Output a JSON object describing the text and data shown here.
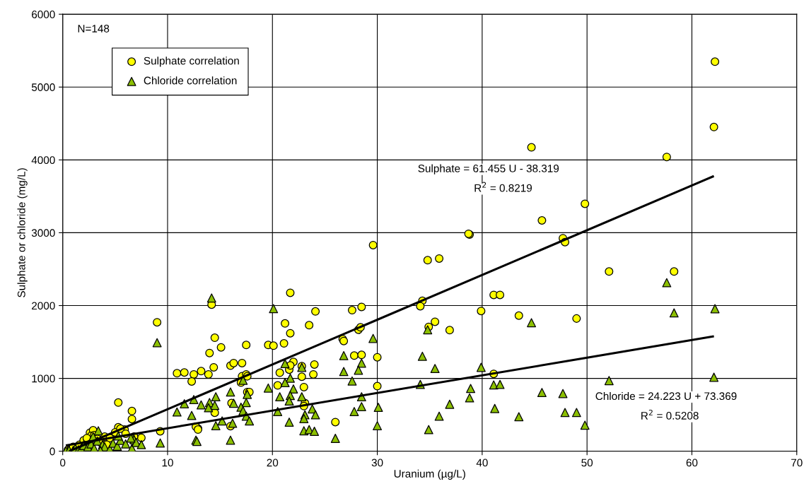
{
  "chart_data": {
    "type": "scatter",
    "xlabel": "Uranium (µg/L)",
    "ylabel": "Sulphate or chloride (mg/L)",
    "xlim": [
      0,
      70
    ],
    "xticks": [
      0,
      10,
      20,
      30,
      40,
      50,
      60,
      70
    ],
    "ylim": [
      0,
      6000
    ],
    "yticks": [
      0,
      1000,
      2000,
      3000,
      4000,
      5000,
      6000
    ],
    "grid": true,
    "legend": "top left",
    "annotations": [
      "N=148",
      "Sulphate = 61.455 U - 38.319",
      "R$^{2}$ = 0.8219",
      "Chloride = 24.223 U + 73.369",
      "R$^{2}$ = 0.5208"
    ],
    "series": [
      {
        "name": "Sulphate correlation",
        "marker": "circle",
        "color": "#ffff00",
        "x": [
          14.2,
          21.7,
          24.1,
          27.6,
          28.5,
          21.2,
          23.5,
          21.7,
          14.5,
          15.1,
          17.5,
          19.6,
          20.1,
          21.1,
          14.0,
          26.7,
          26.8,
          28.2,
          28.4,
          27.8,
          28.5,
          13.2,
          13.9,
          14.4,
          16.0,
          16.3,
          17.1,
          17.1,
          17.5,
          17.6,
          17.0,
          17.6,
          17.8,
          16.1,
          16.0,
          14.5,
          12.9,
          20.7,
          21.6,
          22.0,
          21.7,
          22.8,
          24.0,
          23.9,
          22.8,
          20.5,
          23.0,
          23.1,
          23.0,
          26.0,
          29.6,
          38.8,
          38.7,
          34.8,
          35.9,
          34.3,
          34.1,
          39.9,
          41.1,
          41.7,
          43.5,
          35.5,
          34.9,
          36.9,
          30.0,
          30.0,
          41.1,
          62.2,
          62.1,
          57.6,
          44.7,
          49.8,
          45.7,
          47.7,
          47.9,
          52.1,
          58.3,
          49.0,
          9.0,
          10.9,
          11.6,
          12.5,
          12.3,
          5.3,
          6.6,
          6.6,
          9.3,
          12.7,
          12.9,
          7.5,
          5.3,
          5.9,
          2.6,
          2.9,
          2.7,
          0.5,
          0.8,
          1.0,
          1.6,
          2.0,
          2.3,
          3.0,
          3.3,
          3.6,
          4.0,
          4.5,
          5.0,
          5.5,
          6.0,
          6.8,
          4.2,
          2.6
        ],
        "values": [
          2013,
          2175,
          1920,
          1936,
          1981,
          1755,
          1730,
          1620,
          1558,
          1426,
          1459,
          1459,
          1449,
          1481,
          1349,
          1539,
          1513,
          1668,
          1701,
          1313,
          1323,
          1100,
          1055,
          1152,
          1175,
          1210,
          1210,
          1029,
          1055,
          1029,
          942,
          813,
          813,
          661,
          345,
          529,
          313,
          1078,
          1120,
          1226,
          1177,
          1168,
          1191,
          1055,
          1023,
          903,
          881,
          661,
          620,
          400,
          2830,
          2975,
          2985,
          2623,
          2646,
          2065,
          1991,
          1926,
          2146,
          2146,
          1862,
          1778,
          1707,
          1662,
          1290,
          894,
          1062,
          5349,
          4451,
          4040,
          4172,
          3398,
          3169,
          2925,
          2871,
          2468,
          2468,
          1822,
          1771,
          1071,
          1081,
          1055,
          958,
          668,
          552,
          442,
          274,
          336,
          297,
          184,
          329,
          297,
          255,
          288,
          210,
          20,
          40,
          60,
          90,
          150,
          180,
          220,
          170,
          120,
          200,
          180,
          260,
          310,
          240,
          200,
          90,
          100
        ]
      },
      {
        "name": "Chloride correlation",
        "marker": "triangle",
        "color": "#8cc000",
        "x": [
          14.2,
          20.1,
          29.6,
          26.8,
          28.5,
          28.2,
          26.8,
          27.6,
          21.2,
          22.8,
          21.7,
          21.2,
          22.0,
          19.6,
          17.2,
          16.0,
          17.6,
          14.6,
          20.7,
          21.7,
          22.8,
          21.6,
          28.5,
          13.2,
          14.0,
          14.5,
          13.9,
          16.3,
          17.5,
          17.0,
          17.2,
          17.5,
          17.8,
          15.2,
          16.2,
          14.6,
          16.0,
          20.5,
          23.8,
          23.1,
          24.1,
          23.0,
          21.6,
          23.0,
          23.5,
          24.0,
          26.0,
          27.8,
          28.5,
          30.1,
          30.0,
          34.8,
          44.7,
          34.3,
          35.5,
          39.9,
          34.1,
          38.9,
          38.8,
          36.9,
          35.9,
          34.9,
          41.1,
          41.7,
          41.2,
          43.5,
          45.7,
          57.6,
          62.2,
          58.3,
          62.1,
          52.1,
          47.7,
          47.9,
          49.0,
          49.8,
          9.0,
          10.9,
          11.6,
          12.3,
          12.5,
          9.3,
          12.7,
          12.8,
          3.4,
          6.7,
          0.3,
          0.6,
          1.0,
          1.2,
          1.5,
          1.8,
          2.0,
          2.4,
          2.7,
          3.0,
          3.3,
          3.8,
          4.0,
          4.5,
          4.8,
          5.2,
          5.5,
          6.0,
          6.6,
          6.8,
          7.0,
          7.5,
          3.6,
          2.9,
          5.3,
          6.5
        ],
        "values": [
          2104,
          1958,
          1549,
          1313,
          1210,
          1113,
          1094,
          965,
          1203,
          1152,
          1004,
          942,
          855,
          868,
          975,
          813,
          781,
          748,
          748,
          765,
          748,
          690,
          748,
          636,
          669,
          630,
          597,
          659,
          669,
          604,
          555,
          481,
          416,
          416,
          384,
          351,
          152,
          545,
          581,
          500,
          500,
          448,
          400,
          281,
          297,
          274,
          177,
          545,
          613,
          603,
          351,
          1668,
          1765,
          1304,
          1136,
          1152,
          917,
          862,
          733,
          645,
          481,
          297,
          910,
          917,
          587,
          474,
          807,
          2314,
          1957,
          1899,
          1016,
          970,
          792,
          532,
          532,
          358,
          1491,
          539,
          652,
          491,
          710,
          113,
          152,
          135,
          281,
          184,
          5,
          15,
          10,
          40,
          20,
          50,
          80,
          60,
          100,
          40,
          140,
          90,
          60,
          30,
          110,
          70,
          150,
          100,
          40,
          160,
          120,
          90,
          10,
          200,
          210,
          180
        ]
      },
      {
        "type": "line",
        "color": "#000000",
        "x": [
          0.7,
          62
        ],
        "values": [
          5,
          3772
        ]
      },
      {
        "type": "line",
        "color": "#000000",
        "x": [
          0.4,
          62
        ],
        "values": [
          83,
          1575
        ]
      }
    ]
  }
}
